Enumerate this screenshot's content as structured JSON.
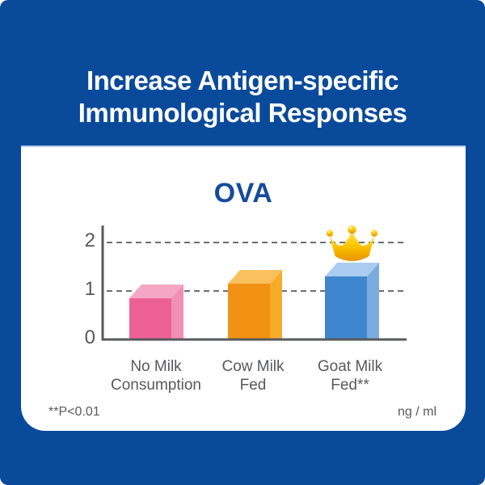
{
  "page": {
    "background_color": "#0a4a9b",
    "heading_line1": "Increase Antigen-specific",
    "heading_line2": "Immunological Responses"
  },
  "chart_data": {
    "type": "bar",
    "title": "OVA",
    "title_color": "#164a9e",
    "categories": [
      "No Milk Consumption",
      "Cow Milk Fed",
      "Goat Milk Fed**"
    ],
    "values": [
      0.85,
      1.15,
      1.3
    ],
    "yticks": [
      0,
      1,
      2
    ],
    "ylim": [
      0,
      2.2
    ],
    "grid": "dashed horizontal lines at y=1 and y=2",
    "legend": "none",
    "xlabel": "",
    "ylabel": "",
    "unit_label": "ng / ml",
    "footnote": "**P<0.01",
    "axis_color": "#58595b",
    "grid_color": "#6d6e71",
    "text_color": "#58595b",
    "bars": [
      {
        "label": "No Milk Consumption",
        "label_lines": [
          "No Milk",
          "Consumption"
        ],
        "value": 0.85,
        "front_color": "#ec6096",
        "side_color": "#f190b3",
        "top_color": "#f4a6c4",
        "crown": false
      },
      {
        "label": "Cow Milk Fed",
        "label_lines": [
          "Cow Milk",
          "Fed"
        ],
        "value": 1.15,
        "front_color": "#f29214",
        "side_color": "#f6ac29",
        "top_color": "#fac05e",
        "crown": false
      },
      {
        "label": "Goat Milk Fed**",
        "label_lines": [
          "Goat Milk",
          "Fed**"
        ],
        "value": 1.3,
        "front_color": "#3e87ce",
        "side_color": "#7cacdf",
        "top_color": "#abcbf0",
        "crown": true
      }
    ],
    "crown_colors": {
      "light": "#ffe65c",
      "mid": "#fdc800",
      "dark": "#e89200"
    }
  }
}
